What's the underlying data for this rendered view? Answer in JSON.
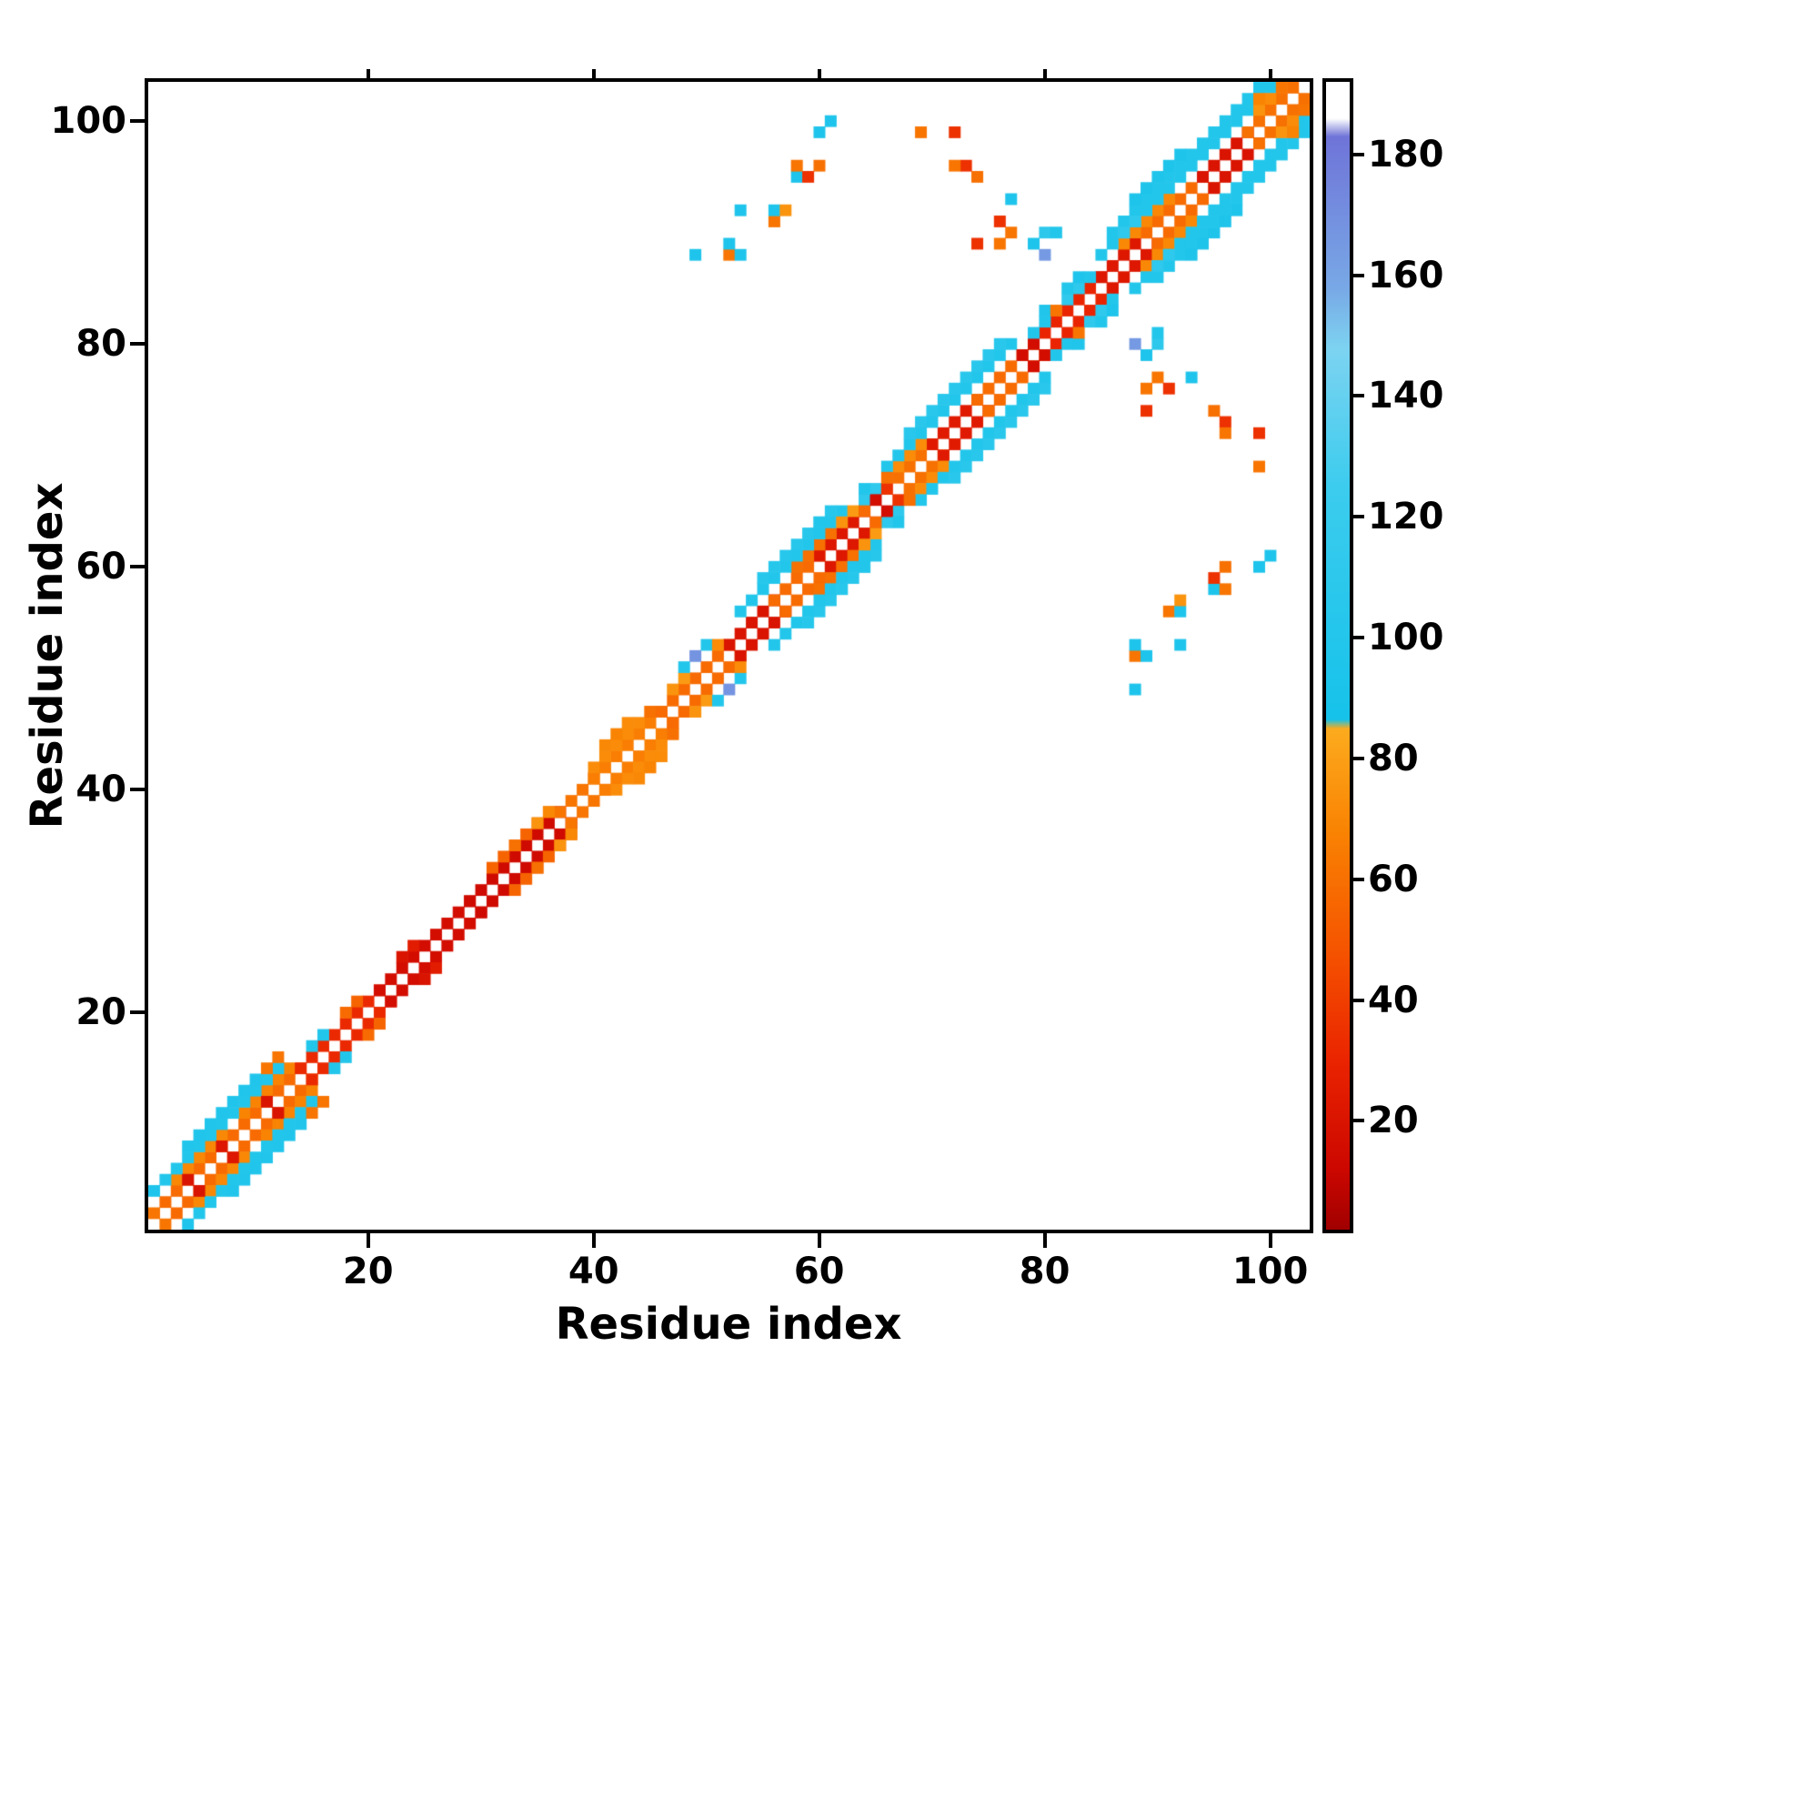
{
  "chart_data": {
    "type": "heatmap",
    "title": "",
    "xlabel": "Residue index",
    "ylabel": "Residue index",
    "xlim": [
      0.5,
      103.5
    ],
    "ylim": [
      0.5,
      103.5
    ],
    "x_ticks": [
      20,
      40,
      60,
      80,
      100
    ],
    "y_ticks": [
      20,
      40,
      60,
      80,
      100
    ],
    "n_residues": 103,
    "symmetric": true,
    "background_value_color": "#ffffff",
    "colorbar": {
      "ticks": [
        20,
        40,
        60,
        80,
        100,
        120,
        140,
        160,
        180
      ],
      "vmin": 2,
      "vmax": 192
    },
    "colormap_stops": [
      [
        2,
        "#a00000"
      ],
      [
        12,
        "#cc0700"
      ],
      [
        30,
        "#ea2400"
      ],
      [
        48,
        "#f55300"
      ],
      [
        68,
        "#f98303"
      ],
      [
        85,
        "#fcab1e"
      ],
      [
        86.5,
        "#16c2ea"
      ],
      [
        125,
        "#3cccee"
      ],
      [
        148,
        "#7dd3f1"
      ],
      [
        158,
        "#78a8e6"
      ],
      [
        183,
        "#6f74d8"
      ],
      [
        186,
        "#ffffff"
      ],
      [
        192,
        "#ffffff"
      ]
    ],
    "diagonal_runs": [
      {
        "i0": 2,
        "i1": 14,
        "off": 1,
        "v": 58
      },
      {
        "i0": 3,
        "i1": 7,
        "off": 2,
        "v": 70
      },
      {
        "i0": 9,
        "i1": 13,
        "off": 2,
        "v": 68
      },
      {
        "i0": 2,
        "i1": 12,
        "off": 3,
        "v": 100
      },
      {
        "i0": 4,
        "i1": 10,
        "off": 4,
        "v": 98
      },
      {
        "i0": 11,
        "i1": 12,
        "off": 4,
        "v": 62
      },
      {
        "i0": 14,
        "i1": 21,
        "off": 1,
        "v": 32
      },
      {
        "i0": 21,
        "i1": 29,
        "off": 1,
        "v": 16
      },
      {
        "i0": 29,
        "i1": 37,
        "off": 1,
        "v": 14
      },
      {
        "i0": 31,
        "i1": 36,
        "off": 2,
        "v": 55
      },
      {
        "i0": 37,
        "i1": 40,
        "off": 1,
        "v": 62
      },
      {
        "i0": 40,
        "i1": 46,
        "off": 1,
        "v": 66
      },
      {
        "i0": 40,
        "i1": 45,
        "off": 2,
        "v": 72
      },
      {
        "i0": 46,
        "i1": 52,
        "off": 1,
        "v": 58
      },
      {
        "i0": 52,
        "i1": 56,
        "off": 1,
        "v": 20
      },
      {
        "i0": 56,
        "i1": 60,
        "off": 1,
        "v": 58
      },
      {
        "i0": 60,
        "i1": 64,
        "off": 1,
        "v": 22
      },
      {
        "i0": 58,
        "i1": 61,
        "off": 2,
        "v": 60
      },
      {
        "i0": 53,
        "i1": 62,
        "off": 3,
        "v": 100
      },
      {
        "i0": 55,
        "i1": 61,
        "off": 4,
        "v": 104
      },
      {
        "i0": 67,
        "i1": 70,
        "off": 1,
        "v": 60
      },
      {
        "i0": 70,
        "i1": 74,
        "off": 1,
        "v": 24
      },
      {
        "i0": 74,
        "i1": 79,
        "off": 1,
        "v": 58
      },
      {
        "i0": 67,
        "i1": 69,
        "off": 2,
        "v": 72
      },
      {
        "i0": 66,
        "i1": 77,
        "off": 3,
        "v": 100
      },
      {
        "i0": 68,
        "i1": 76,
        "off": 4,
        "v": 106
      },
      {
        "i0": 80,
        "i1": 85,
        "off": 1,
        "v": 30
      },
      {
        "i0": 85,
        "i1": 89,
        "off": 1,
        "v": 22
      },
      {
        "i0": 89,
        "i1": 94,
        "off": 1,
        "v": 58
      },
      {
        "i0": 94,
        "i1": 98,
        "off": 1,
        "v": 20
      },
      {
        "i0": 98,
        "i1": 102,
        "off": 1,
        "v": 60
      },
      {
        "i0": 87,
        "i1": 91,
        "off": 2,
        "v": 70
      },
      {
        "i0": 85,
        "i1": 100,
        "off": 3,
        "v": 100
      },
      {
        "i0": 86,
        "i1": 99,
        "off": 4,
        "v": 100
      },
      {
        "i0": 88,
        "i1": 92,
        "off": 5,
        "v": 96
      }
    ],
    "cells": [
      [
        1,
        2,
        62
      ],
      [
        1,
        4,
        95
      ],
      [
        4,
        5,
        20
      ],
      [
        7,
        8,
        22
      ],
      [
        11,
        12,
        20
      ],
      [
        15,
        17,
        100
      ],
      [
        16,
        18,
        100
      ],
      [
        18,
        20,
        58
      ],
      [
        19,
        21,
        55
      ],
      [
        23,
        25,
        20
      ],
      [
        24,
        26,
        25
      ],
      [
        33,
        35,
        60
      ],
      [
        35,
        37,
        75
      ],
      [
        36,
        38,
        70
      ],
      [
        41,
        44,
        70
      ],
      [
        42,
        45,
        68
      ],
      [
        43,
        46,
        72
      ],
      [
        45,
        47,
        60
      ],
      [
        47,
        49,
        75
      ],
      [
        48,
        50,
        78
      ],
      [
        48,
        51,
        100
      ],
      [
        49,
        52,
        168
      ],
      [
        50,
        53,
        100
      ],
      [
        51,
        53,
        72
      ],
      [
        62,
        64,
        75
      ],
      [
        63,
        65,
        78
      ],
      [
        60,
        64,
        100
      ],
      [
        64,
        66,
        112
      ],
      [
        65,
        67,
        112
      ],
      [
        64,
        65,
        58
      ],
      [
        65,
        66,
        16
      ],
      [
        66,
        67,
        35
      ],
      [
        64,
        67,
        100
      ],
      [
        66,
        68,
        60
      ],
      [
        78,
        79,
        16
      ],
      [
        79,
        80,
        16
      ],
      [
        79,
        81,
        100
      ],
      [
        80,
        82,
        100
      ],
      [
        80,
        83,
        98
      ],
      [
        81,
        83,
        62
      ],
      [
        82,
        84,
        112
      ],
      [
        83,
        85,
        112
      ],
      [
        82,
        85,
        100
      ],
      [
        84,
        86,
        100
      ],
      [
        83,
        86,
        95
      ],
      [
        87,
        90,
        112
      ],
      [
        88,
        91,
        112
      ],
      [
        99,
        101,
        75
      ],
      [
        100,
        102,
        72
      ],
      [
        99,
        102,
        68
      ],
      [
        101,
        103,
        62
      ],
      [
        49,
        88,
        95
      ],
      [
        52,
        88,
        62
      ],
      [
        52,
        89,
        95
      ],
      [
        53,
        88,
        95
      ],
      [
        53,
        92,
        95
      ],
      [
        56,
        91,
        62
      ],
      [
        56,
        92,
        95
      ],
      [
        57,
        92,
        75
      ],
      [
        58,
        95,
        95
      ],
      [
        59,
        95,
        35
      ],
      [
        58,
        96,
        62
      ],
      [
        60,
        96,
        60
      ],
      [
        60,
        99,
        95
      ],
      [
        61,
        100,
        95
      ],
      [
        69,
        99,
        62
      ],
      [
        72,
        99,
        35
      ],
      [
        73,
        96,
        35
      ],
      [
        72,
        96,
        62
      ],
      [
        74,
        95,
        60
      ],
      [
        77,
        93,
        95
      ],
      [
        77,
        90,
        62
      ],
      [
        74,
        89,
        35
      ],
      [
        76,
        89,
        62
      ],
      [
        79,
        89,
        95
      ],
      [
        80,
        88,
        165
      ],
      [
        80,
        90,
        110
      ],
      [
        81,
        90,
        100
      ],
      [
        76,
        91,
        35
      ]
    ]
  }
}
